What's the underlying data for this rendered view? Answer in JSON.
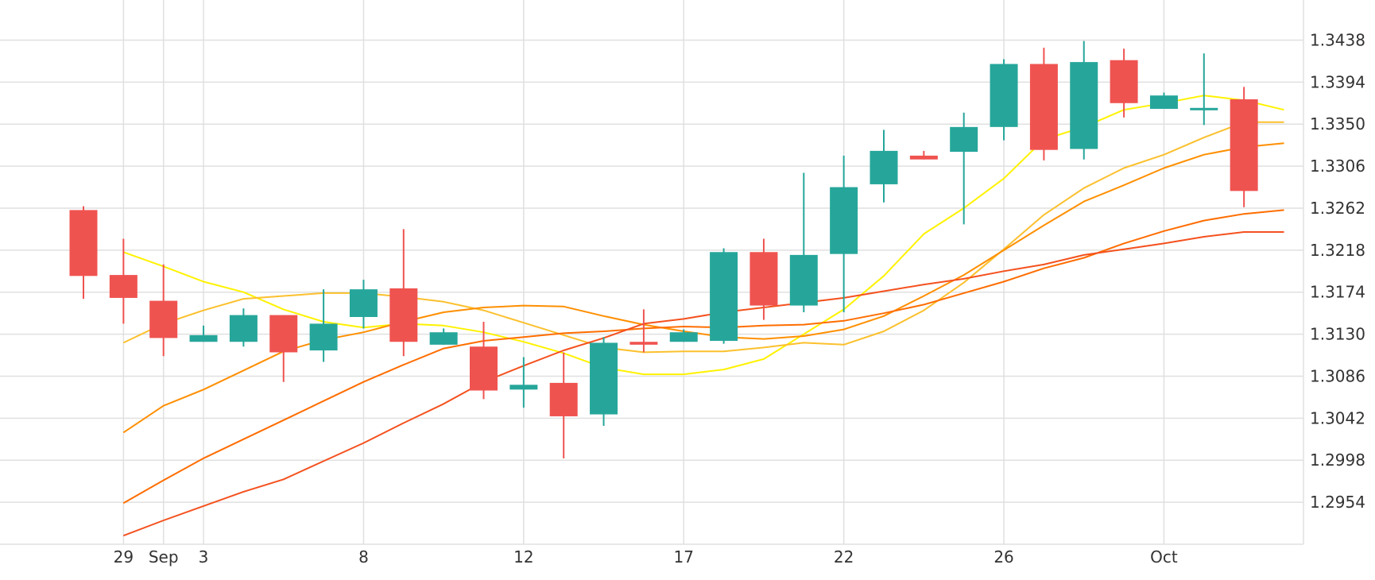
{
  "chart_data": {
    "type": "candlestick",
    "colors": {
      "up": "#26a69a",
      "down": "#ef5350",
      "grid": "#e0e0e0",
      "axis_text": "#333333",
      "ma1": "#fff200",
      "ma2": "#fbc02d",
      "ma3": "#ff8f00",
      "ma4": "#ff6d00",
      "ma5": "#f4511e"
    },
    "y_range": [
      1.291,
      1.348
    ],
    "y_ticks": [
      "1.3438",
      "1.3394",
      "1.3350",
      "1.3306",
      "1.3262",
      "1.3218",
      "1.3174",
      "1.3130",
      "1.3086",
      "1.3042",
      "1.2998",
      "1.2954"
    ],
    "x_ticks": [
      {
        "label": "29",
        "index": 1
      },
      {
        "label": "Sep",
        "index": 2
      },
      {
        "label": "3",
        "index": 3
      },
      {
        "label": "8",
        "index": 7
      },
      {
        "label": "12",
        "index": 11
      },
      {
        "label": "17",
        "index": 15
      },
      {
        "label": "22",
        "index": 19
      },
      {
        "label": "26",
        "index": 23
      },
      {
        "label": "Oct",
        "index": 27
      }
    ],
    "candles": [
      {
        "open": 1.326,
        "high": 1.3264,
        "low": 1.3167,
        "close": 1.3191
      },
      {
        "open": 1.3192,
        "high": 1.323,
        "low": 1.3141,
        "close": 1.3168
      },
      {
        "open": 1.3165,
        "high": 1.3203,
        "low": 1.3107,
        "close": 1.3126
      },
      {
        "open": 1.3122,
        "high": 1.3139,
        "low": 1.3122,
        "close": 1.3129
      },
      {
        "open": 1.3122,
        "high": 1.3157,
        "low": 1.3117,
        "close": 1.315
      },
      {
        "open": 1.315,
        "high": 1.315,
        "low": 1.308,
        "close": 1.3111
      },
      {
        "open": 1.3113,
        "high": 1.3177,
        "low": 1.3101,
        "close": 1.3141
      },
      {
        "open": 1.3148,
        "high": 1.3187,
        "low": 1.3136,
        "close": 1.3177
      },
      {
        "open": 1.3178,
        "high": 1.324,
        "low": 1.3107,
        "close": 1.3122
      },
      {
        "open": 1.3119,
        "high": 1.3136,
        "low": 1.3119,
        "close": 1.3132
      },
      {
        "open": 1.3117,
        "high": 1.3143,
        "low": 1.3062,
        "close": 1.3071
      },
      {
        "open": 1.3072,
        "high": 1.3106,
        "low": 1.3053,
        "close": 1.3077
      },
      {
        "open": 1.3079,
        "high": 1.3111,
        "low": 1.3,
        "close": 1.3044
      },
      {
        "open": 1.3046,
        "high": 1.3127,
        "low": 1.3034,
        "close": 1.3121
      },
      {
        "open": 1.3122,
        "high": 1.3156,
        "low": 1.3111,
        "close": 1.3119
      },
      {
        "open": 1.3122,
        "high": 1.3135,
        "low": 1.3122,
        "close": 1.3132
      },
      {
        "open": 1.3123,
        "high": 1.322,
        "low": 1.312,
        "close": 1.3216
      },
      {
        "open": 1.3216,
        "high": 1.323,
        "low": 1.3145,
        "close": 1.316
      },
      {
        "open": 1.316,
        "high": 1.3299,
        "low": 1.3153,
        "close": 1.3213
      },
      {
        "open": 1.3214,
        "high": 1.3317,
        "low": 1.3153,
        "close": 1.3284
      },
      {
        "open": 1.3287,
        "high": 1.3344,
        "low": 1.3268,
        "close": 1.3322
      },
      {
        "open": 1.3317,
        "high": 1.3322,
        "low": 1.3313,
        "close": 1.3313
      },
      {
        "open": 1.3321,
        "high": 1.3362,
        "low": 1.3245,
        "close": 1.3347
      },
      {
        "open": 1.3347,
        "high": 1.3418,
        "low": 1.3333,
        "close": 1.3413
      },
      {
        "open": 1.3413,
        "high": 1.343,
        "low": 1.3312,
        "close": 1.3323
      },
      {
        "open": 1.3324,
        "high": 1.3437,
        "low": 1.3313,
        "close": 1.3415
      },
      {
        "open": 1.3417,
        "high": 1.3429,
        "low": 1.3357,
        "close": 1.3372
      },
      {
        "open": 1.3366,
        "high": 1.3383,
        "low": 1.3366,
        "close": 1.338
      },
      {
        "open": 1.3366,
        "high": 1.3424,
        "low": 1.3349,
        "close": 1.3367
      },
      {
        "open": 1.3376,
        "high": 1.3389,
        "low": 1.3263,
        "close": 1.328
      }
    ],
    "moving_averages": [
      {
        "color_key": "ma1",
        "start_index": 1,
        "values": [
          1.3216,
          1.3201,
          1.3185,
          1.3174,
          1.3156,
          1.3143,
          1.3137,
          1.3141,
          1.3139,
          1.3132,
          1.3122,
          1.311,
          1.3095,
          1.3088,
          1.3088,
          1.3093,
          1.3104,
          1.313,
          1.3156,
          1.3191,
          1.3235,
          1.3262,
          1.3293,
          1.3334,
          1.3347,
          1.3365,
          1.3372,
          1.338,
          1.3375,
          1.3365
        ]
      },
      {
        "color_key": "ma2",
        "start_index": 1,
        "values": [
          1.3121,
          1.3141,
          1.3155,
          1.3167,
          1.317,
          1.3173,
          1.3173,
          1.3169,
          1.3164,
          1.3155,
          1.3142,
          1.3129,
          1.3116,
          1.3111,
          1.3112,
          1.3112,
          1.3116,
          1.3121,
          1.3119,
          1.3133,
          1.3155,
          1.3184,
          1.3219,
          1.3255,
          1.3283,
          1.3304,
          1.3318,
          1.3336,
          1.3352,
          1.3352
        ]
      },
      {
        "color_key": "ma3",
        "start_index": 1,
        "values": [
          1.3027,
          1.3055,
          1.3072,
          1.3092,
          1.3112,
          1.3124,
          1.3132,
          1.3143,
          1.3153,
          1.3158,
          1.316,
          1.3159,
          1.3149,
          1.314,
          1.3133,
          1.3127,
          1.3125,
          1.3128,
          1.3135,
          1.3149,
          1.317,
          1.3192,
          1.3218,
          1.3244,
          1.3269,
          1.3286,
          1.3304,
          1.3318,
          1.3326,
          1.333
        ]
      },
      {
        "color_key": "ma4",
        "start_index": 1,
        "values": [
          1.2953,
          1.2977,
          1.3,
          1.302,
          1.304,
          1.306,
          1.308,
          1.3098,
          1.3115,
          1.3123,
          1.3127,
          1.3131,
          1.3133,
          1.3136,
          1.3138,
          1.3137,
          1.3139,
          1.314,
          1.3144,
          1.3152,
          1.3161,
          1.3173,
          1.3185,
          1.3199,
          1.321,
          1.3225,
          1.3238,
          1.3249,
          1.3256,
          1.326
        ]
      },
      {
        "color_key": "ma5",
        "start_index": 1,
        "values": [
          1.2919,
          1.2935,
          1.295,
          1.2965,
          1.2978,
          1.2997,
          1.3016,
          1.3037,
          1.3057,
          1.308,
          1.3097,
          1.3113,
          1.3126,
          1.3141,
          1.3146,
          1.3153,
          1.3158,
          1.3163,
          1.3168,
          1.3175,
          1.3182,
          1.3188,
          1.3196,
          1.3203,
          1.3213,
          1.3219,
          1.3225,
          1.3232,
          1.3237,
          1.3237
        ]
      }
    ]
  }
}
